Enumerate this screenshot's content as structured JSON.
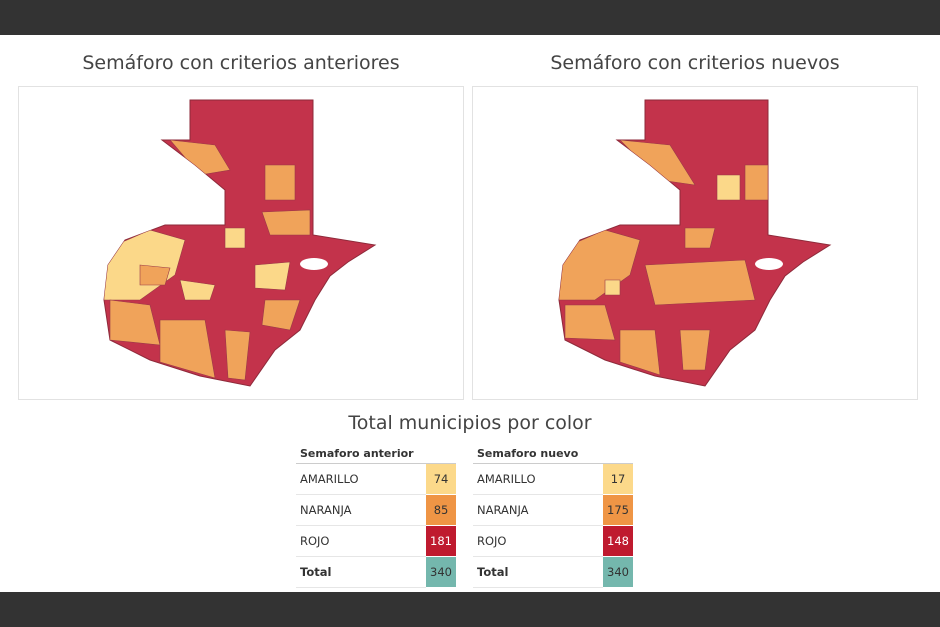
{
  "titles": {
    "left_map": "Semáforo con criterios anteriores",
    "right_map": "Semáforo con criterios nuevos",
    "summary": "Total municipios por color"
  },
  "tables": [
    {
      "header": "Semaforo anterior",
      "rows": [
        {
          "label": "AMARILLO",
          "value": 74
        },
        {
          "label": "NARANJA",
          "value": 85
        },
        {
          "label": "ROJO",
          "value": 181
        },
        {
          "label": "Total",
          "value": 340
        }
      ]
    },
    {
      "header": "Semaforo nuevo",
      "rows": [
        {
          "label": "AMARILLO",
          "value": 17
        },
        {
          "label": "NARANJA",
          "value": 175
        },
        {
          "label": "ROJO",
          "value": 148
        },
        {
          "label": "Total",
          "value": 340
        }
      ]
    }
  ]
}
